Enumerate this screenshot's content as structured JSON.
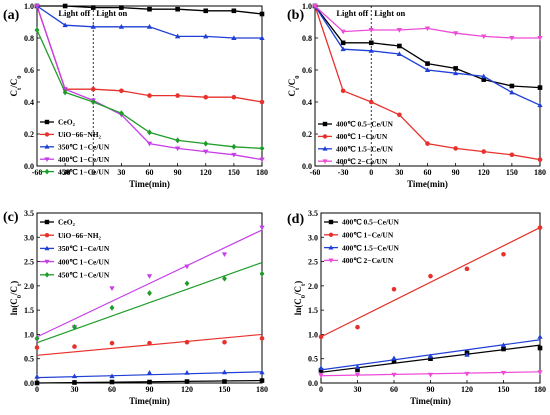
{
  "colors": {
    "ceo2": "#000000",
    "uio": "#e8312c",
    "s350": "#1f3fd6",
    "s400": "#c63ee8",
    "s450": "#1e9c28",
    "c05": "#000000",
    "c10": "#e8312c",
    "c15": "#1f3fd6",
    "c20": "#ee4bd8"
  },
  "chart_data": [
    {
      "panel": "(a)",
      "type": "line",
      "xlabel": "Time(min)",
      "ylabel": "Ct/C0",
      "xlim": [
        -60,
        180
      ],
      "ylim": [
        0.0,
        1.0
      ],
      "xticks": [
        "-60",
        "-30",
        "0",
        "30",
        "60",
        "90",
        "120",
        "150",
        "180"
      ],
      "yticks": [
        "0.0",
        "0.2",
        "0.4",
        "0.6",
        "0.8",
        "1.0"
      ],
      "annotations": [
        "Light off",
        "Light on"
      ],
      "legend_position": "bottom-left",
      "series": [
        {
          "name": "CeO₂",
          "color_key": "ceo2",
          "marker": "square",
          "x": [
            -60,
            -30,
            0,
            30,
            60,
            90,
            120,
            150,
            180
          ],
          "y": [
            1.0,
            1.0,
            0.99,
            0.99,
            0.98,
            0.98,
            0.97,
            0.97,
            0.95
          ]
        },
        {
          "name": "UiO−66−NH₂",
          "color_key": "uio",
          "marker": "circle",
          "x": [
            -60,
            -30,
            0,
            30,
            60,
            90,
            120,
            150,
            180
          ],
          "y": [
            1.0,
            0.48,
            0.48,
            0.47,
            0.44,
            0.44,
            0.43,
            0.43,
            0.4
          ]
        },
        {
          "name": "350℃ 1−Ce/UN",
          "color_key": "s350",
          "marker": "triangle-up",
          "x": [
            -60,
            -30,
            0,
            30,
            60,
            90,
            120,
            150,
            180
          ],
          "y": [
            1.0,
            0.88,
            0.87,
            0.87,
            0.87,
            0.81,
            0.81,
            0.8,
            0.8
          ]
        },
        {
          "name": "400℃ 1−Ce/UN",
          "color_key": "s400",
          "marker": "triangle-down",
          "x": [
            -60,
            -30,
            0,
            30,
            60,
            90,
            120,
            150,
            180
          ],
          "y": [
            1.0,
            0.48,
            0.41,
            0.32,
            0.14,
            0.11,
            0.09,
            0.07,
            0.04
          ]
        },
        {
          "name": "450℃ 1−Ce/UN",
          "color_key": "s450",
          "marker": "diamond",
          "x": [
            -60,
            -30,
            0,
            30,
            60,
            90,
            120,
            150,
            180
          ],
          "y": [
            0.85,
            0.46,
            0.4,
            0.33,
            0.21,
            0.16,
            0.14,
            0.12,
            0.11
          ]
        }
      ]
    },
    {
      "panel": "(b)",
      "type": "line",
      "xlabel": "Time(min)",
      "ylabel": "Ct/C0",
      "xlim": [
        -60,
        180
      ],
      "ylim": [
        0.0,
        1.0
      ],
      "xticks": [
        "-60",
        "-30",
        "0",
        "30",
        "60",
        "90",
        "120",
        "150",
        "180"
      ],
      "yticks": [
        "0.0",
        "0.2",
        "0.4",
        "0.6",
        "0.8",
        "1.0"
      ],
      "annotations": [
        "Light off",
        "Light on"
      ],
      "legend_position": "bottom-left",
      "series": [
        {
          "name": "400℃ 0.5−Ce/UN",
          "color_key": "c05",
          "marker": "square",
          "x": [
            -60,
            -30,
            0,
            30,
            60,
            90,
            120,
            150,
            180
          ],
          "y": [
            1.0,
            0.77,
            0.77,
            0.75,
            0.64,
            0.61,
            0.54,
            0.5,
            0.49
          ]
        },
        {
          "name": "400℃ 1−Ce/UN",
          "color_key": "c10",
          "marker": "circle",
          "x": [
            -60,
            -30,
            0,
            30,
            60,
            90,
            120,
            150,
            180
          ],
          "y": [
            1.0,
            0.47,
            0.4,
            0.32,
            0.14,
            0.11,
            0.09,
            0.07,
            0.04
          ]
        },
        {
          "name": "400℃ 1.5−Ce/UN",
          "color_key": "c15",
          "marker": "triangle-up",
          "x": [
            -60,
            -30,
            0,
            30,
            60,
            90,
            120,
            150,
            180
          ],
          "y": [
            1.0,
            0.73,
            0.72,
            0.7,
            0.6,
            0.58,
            0.56,
            0.46,
            0.38
          ]
        },
        {
          "name": "400℃ 2−Ce/UN",
          "color_key": "c20",
          "marker": "triangle-down",
          "x": [
            -60,
            -30,
            0,
            30,
            60,
            90,
            120,
            150,
            180
          ],
          "y": [
            1.0,
            0.84,
            0.85,
            0.85,
            0.86,
            0.83,
            0.81,
            0.8,
            0.8
          ]
        }
      ]
    },
    {
      "panel": "(c)",
      "type": "scatter",
      "xlabel": "Time(min)",
      "ylabel": "ln(C0/Ct)",
      "xlim": [
        0,
        180
      ],
      "ylim": [
        0.0,
        3.5
      ],
      "xticks": [
        "0",
        "30",
        "60",
        "90",
        "120",
        "150",
        "180"
      ],
      "yticks": [
        "0.0",
        "0.5",
        "1.0",
        "1.5",
        "2.0",
        "2.5",
        "3.0",
        "3.5"
      ],
      "legend_position": "top-left",
      "fit": "linear",
      "series": [
        {
          "name": "CeO₂",
          "color_key": "ceo2",
          "marker": "square",
          "x": [
            0,
            30,
            60,
            90,
            120,
            150,
            180
          ],
          "y": [
            0.0,
            0.01,
            0.02,
            0.02,
            0.03,
            0.03,
            0.05
          ],
          "fit_line": [
            0.0,
            0.05
          ]
        },
        {
          "name": "UiO−66−NH₂",
          "color_key": "uio",
          "marker": "circle",
          "x": [
            0,
            30,
            60,
            90,
            120,
            150,
            180
          ],
          "y": [
            0.73,
            0.75,
            0.82,
            0.82,
            0.84,
            0.84,
            0.92
          ],
          "fit_line": [
            0.57,
            1.0
          ]
        },
        {
          "name": "350℃ 1−Ce/UN",
          "color_key": "s350",
          "marker": "triangle-up",
          "x": [
            0,
            30,
            60,
            90,
            120,
            150,
            180
          ],
          "y": [
            0.13,
            0.14,
            0.14,
            0.21,
            0.21,
            0.22,
            0.22
          ],
          "fit_line": [
            0.11,
            0.23
          ]
        },
        {
          "name": "400℃ 1−Ce/UN",
          "color_key": "s400",
          "marker": "triangle-down",
          "x": [
            0,
            30,
            60,
            90,
            120,
            150,
            180
          ],
          "y": [
            0.89,
            1.15,
            1.95,
            2.2,
            2.4,
            2.65,
            3.2
          ],
          "fit_line": [
            0.95,
            3.15
          ]
        },
        {
          "name": "450℃ 1−Ce/UN",
          "color_key": "s450",
          "marker": "diamond",
          "x": [
            0,
            30,
            60,
            90,
            120,
            150,
            180
          ],
          "y": [
            0.92,
            1.15,
            1.55,
            1.85,
            2.05,
            2.15,
            2.25
          ],
          "fit_line": [
            0.83,
            2.48
          ]
        }
      ]
    },
    {
      "panel": "(d)",
      "type": "scatter",
      "xlabel": "Time(min)",
      "ylabel": "ln(C0/Ct)",
      "xlim": [
        0,
        180
      ],
      "ylim": [
        0.0,
        3.5
      ],
      "xticks": [
        "0",
        "30",
        "60",
        "90",
        "120",
        "150",
        "180"
      ],
      "yticks": [
        "0.0",
        "0.5",
        "1.0",
        "1.5",
        "2.0",
        "2.5",
        "3.0",
        "3.5"
      ],
      "legend_position": "top-left",
      "fit": "linear",
      "series": [
        {
          "name": "400℃ 0.5−Ce/UN",
          "color_key": "c05",
          "marker": "square",
          "x": [
            0,
            30,
            60,
            90,
            120,
            150,
            180
          ],
          "y": [
            0.26,
            0.27,
            0.45,
            0.5,
            0.62,
            0.7,
            0.72
          ],
          "fit_line": [
            0.22,
            0.78
          ]
        },
        {
          "name": "400℃ 1−Ce/UN",
          "color_key": "c10",
          "marker": "circle",
          "x": [
            0,
            30,
            60,
            90,
            120,
            150,
            180
          ],
          "y": [
            0.95,
            1.15,
            1.93,
            2.2,
            2.35,
            2.65,
            3.2
          ],
          "fit_line": [
            0.95,
            3.2
          ]
        },
        {
          "name": "400℃ 1.5−Ce/UN",
          "color_key": "c15",
          "marker": "triangle-up",
          "x": [
            0,
            30,
            60,
            90,
            120,
            150,
            180
          ],
          "y": [
            0.31,
            0.33,
            0.51,
            0.55,
            0.58,
            0.78,
            0.95
          ],
          "fit_line": [
            0.27,
            0.89
          ]
        },
        {
          "name": "400℃ 2−Ce/UN",
          "color_key": "c20",
          "marker": "triangle-down",
          "x": [
            0,
            30,
            60,
            90,
            120,
            150,
            180
          ],
          "y": [
            0.16,
            0.17,
            0.17,
            0.17,
            0.19,
            0.21,
            0.22
          ],
          "fit_line": [
            0.15,
            0.23
          ]
        }
      ]
    }
  ]
}
